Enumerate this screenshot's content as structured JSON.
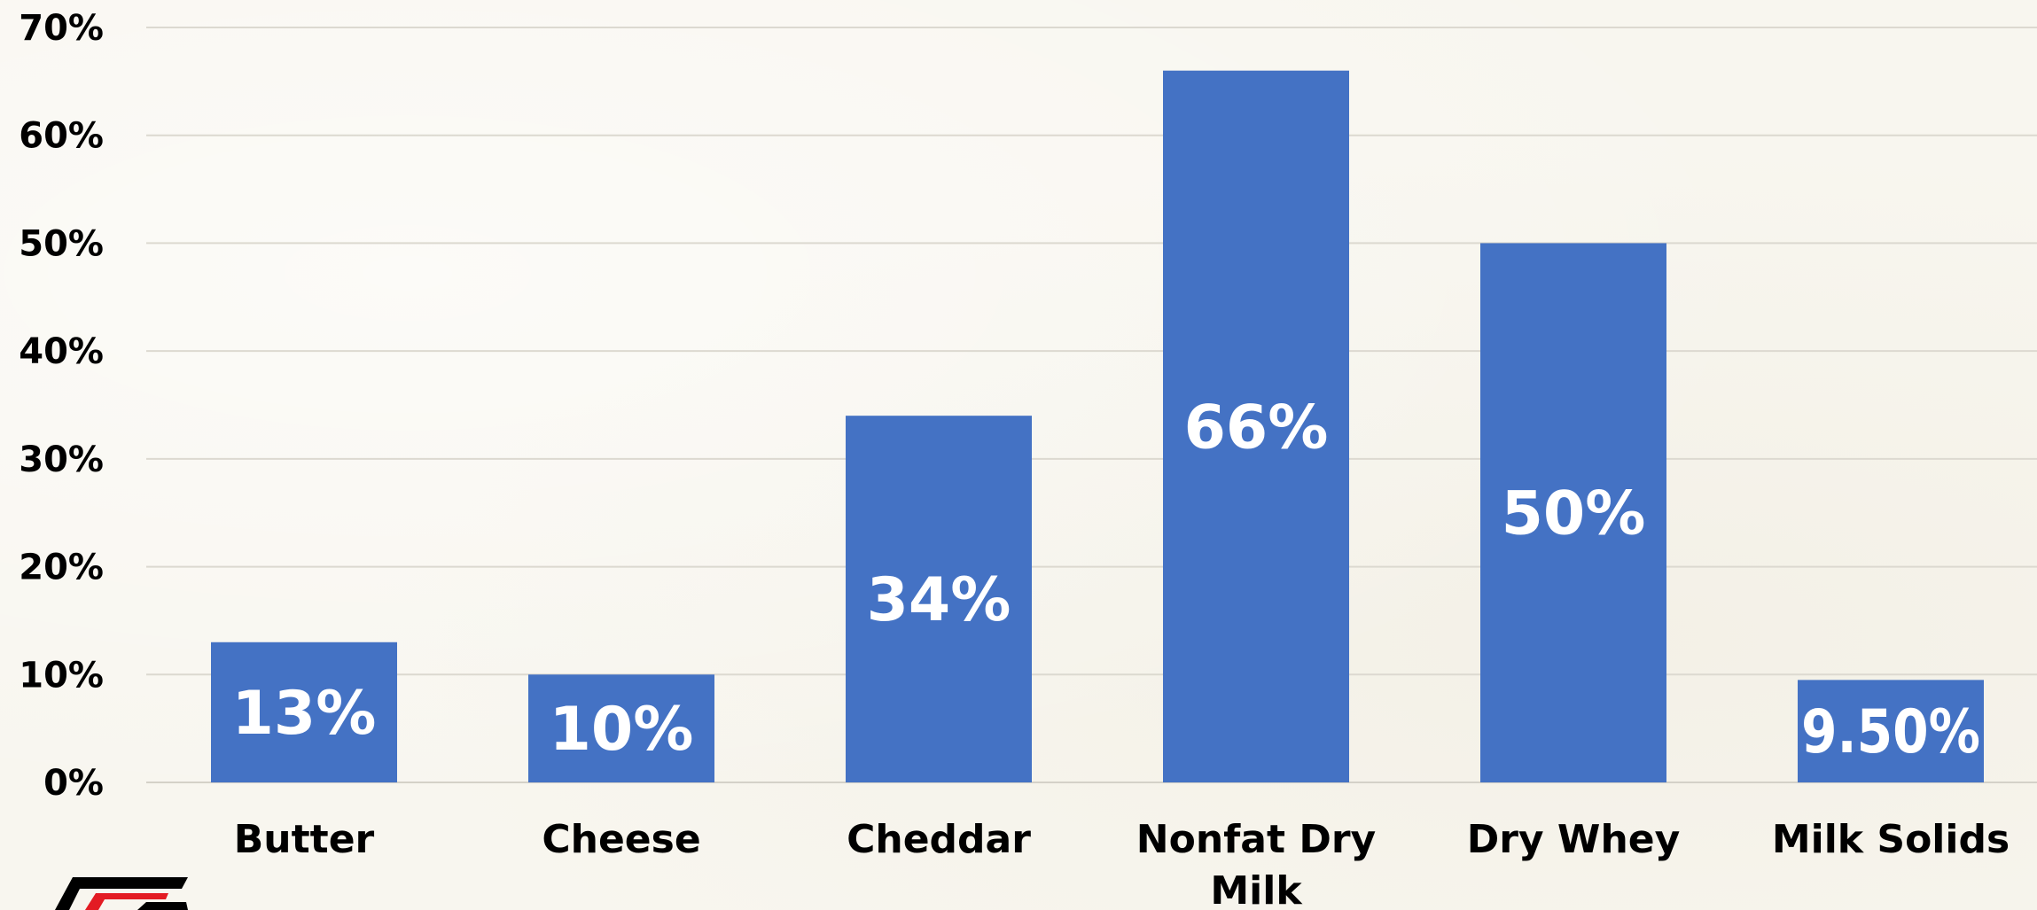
{
  "chart_data": {
    "type": "bar",
    "title": "",
    "xlabel": "",
    "ylabel": "",
    "categories": [
      [
        "Butter"
      ],
      [
        "Cheese"
      ],
      [
        "Cheddar"
      ],
      [
        "Nonfat Dry",
        "Milk"
      ],
      [
        "Dry Whey"
      ],
      [
        "Milk Solids"
      ]
    ],
    "values": [
      13,
      10,
      34,
      66,
      50,
      9.5
    ],
    "data_labels": [
      "13%",
      "10%",
      "34%",
      "66%",
      "50%",
      "9.50%"
    ],
    "ylim": [
      0,
      70
    ],
    "y_ticks": [
      0,
      10,
      20,
      30,
      40,
      50,
      60,
      70
    ],
    "y_tick_labels": [
      "0%",
      "10%",
      "20%",
      "30%",
      "40%",
      "50%",
      "60%",
      "70%"
    ],
    "grid": true,
    "legend": "none",
    "bar_color": "#4472c4",
    "data_label_color": "#ffffff"
  },
  "logo": {
    "icon": "farm-bureau-logo-icon",
    "colors": [
      "#000000",
      "#e31b23"
    ]
  }
}
